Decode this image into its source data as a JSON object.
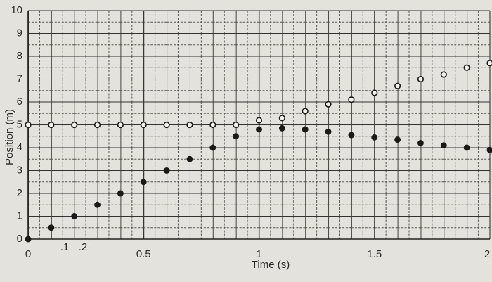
{
  "chart_data": {
    "type": "scatter",
    "xlabel": "Time (s)",
    "ylabel": "Position (m)",
    "annotations": [
      ".1",
      ".2"
    ],
    "x": [
      0,
      0.1,
      0.2,
      0.3,
      0.4,
      0.5,
      0.6,
      0.7,
      0.8,
      0.9,
      1,
      1.1,
      1.2,
      1.3,
      1.4,
      1.5,
      1.6,
      1.7,
      1.8,
      1.9,
      2
    ],
    "series": [
      {
        "color": "#1a1a1a",
        "marker": "filled",
        "values": [
          0,
          0.5,
          1,
          1.5,
          2,
          2.5,
          3,
          3.5,
          4,
          4.5,
          4.8,
          4.85,
          4.8,
          4.7,
          4.55,
          4.45,
          4.35,
          4.2,
          4.1,
          4,
          3.9
        ]
      },
      {
        "color": "#1a1a1a",
        "marker": "open",
        "values": [
          5,
          5,
          5,
          5,
          5,
          5,
          5,
          5,
          5,
          5,
          5.2,
          5.3,
          5.6,
          5.9,
          6.1,
          6.4,
          6.7,
          7,
          7.2,
          7.5,
          7.7
        ]
      }
    ],
    "xlim": [
      0,
      2
    ],
    "xticks": [
      0,
      0.5,
      1,
      1.5,
      2
    ],
    "ylim": [
      0,
      10
    ],
    "yticks": [
      0,
      1,
      2,
      3,
      4,
      5,
      6,
      7,
      8,
      9,
      10
    ],
    "grid": true
  }
}
